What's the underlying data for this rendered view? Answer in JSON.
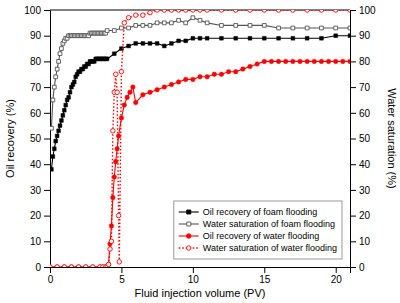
{
  "chart_data": {
    "type": "line",
    "xlabel": "Fluid injection volume (PV)",
    "ylabel": "Oil recovery (%)",
    "y2label": "Water saturation (%)",
    "xlim": [
      0,
      21
    ],
    "xticks": [
      0,
      5,
      10,
      15,
      20
    ],
    "ylim": [
      0,
      100
    ],
    "yticks": [
      0,
      10,
      20,
      30,
      40,
      50,
      60,
      70,
      80,
      90,
      100
    ],
    "y2lim": [
      0,
      100
    ],
    "y2ticks": [
      0,
      10,
      20,
      30,
      40,
      50,
      60,
      70,
      80,
      90,
      100
    ],
    "grid": false,
    "legend": "lower right",
    "series": [
      {
        "name": "Oil recovery of foam flooding",
        "color": "#000000",
        "marker": "square",
        "line_style": "solid",
        "axis": "y",
        "x": [
          0.1,
          0.2,
          0.3,
          0.4,
          0.5,
          0.6,
          0.7,
          0.8,
          0.9,
          1.0,
          1.1,
          1.2,
          1.3,
          1.4,
          1.5,
          1.6,
          1.7,
          1.8,
          1.9,
          2.0,
          2.1,
          2.2,
          2.3,
          2.4,
          2.5,
          2.6,
          2.7,
          2.8,
          2.9,
          3.0,
          3.1,
          3.2,
          3.3,
          3.4,
          3.5,
          3.6,
          3.7,
          3.8,
          3.9,
          4.0,
          4.5,
          5.0,
          5.5,
          6.0,
          6.5,
          7.0,
          7.5,
          8.0,
          8.5,
          9.0,
          9.5,
          10.0,
          10.5,
          11.0,
          12.0,
          13.0,
          14.0,
          15.0,
          16.0,
          17.0,
          18.0,
          19.0,
          20.0,
          21.0
        ],
        "values": [
          38,
          43,
          46,
          49,
          51,
          53,
          55,
          57,
          59,
          61,
          63,
          65,
          66,
          68,
          70,
          71,
          72,
          74,
          75,
          76,
          76,
          77,
          77,
          78,
          78,
          79,
          79,
          80,
          80,
          80,
          80,
          81,
          81,
          81,
          81,
          81,
          81,
          81,
          81,
          81,
          83,
          85,
          86,
          87,
          87,
          87,
          87,
          86,
          87,
          88,
          88,
          89,
          89,
          89,
          89,
          89,
          89,
          89,
          89,
          89,
          89,
          89,
          90,
          90
        ]
      },
      {
        "name": "Water saturation of foam flooding",
        "color": "#555555",
        "marker": "open-square",
        "line_style": "solid",
        "axis": "y2",
        "x": [
          0.1,
          0.2,
          0.3,
          0.4,
          0.5,
          0.6,
          0.7,
          0.8,
          0.9,
          1.0,
          1.1,
          1.2,
          1.3,
          1.4,
          1.5,
          1.6,
          1.7,
          1.8,
          1.9,
          2.0,
          2.1,
          2.2,
          2.3,
          2.4,
          2.5,
          2.6,
          2.7,
          2.8,
          2.9,
          3.0,
          3.1,
          3.2,
          3.3,
          3.4,
          3.5,
          3.6,
          3.7,
          3.8,
          3.9,
          4.0,
          4.5,
          5.0,
          5.5,
          6.0,
          6.5,
          7.0,
          7.5,
          8.0,
          8.5,
          9.0,
          9.5,
          10.0,
          10.5,
          11.0,
          12.0,
          13.0,
          14.0,
          15.0,
          16.0,
          17.0,
          18.0,
          19.0,
          20.0,
          21.0
        ],
        "values": [
          54,
          65,
          70,
          74,
          77,
          80,
          83,
          85,
          87,
          88,
          89,
          89,
          90,
          90,
          90,
          90,
          90,
          90,
          90,
          90,
          90,
          90,
          90,
          90,
          90,
          90,
          90,
          91,
          91,
          91,
          91,
          91,
          91,
          91,
          91,
          91,
          91,
          91,
          91,
          92,
          92,
          93,
          93,
          94,
          94,
          94,
          95,
          95,
          95,
          96,
          95,
          97,
          96,
          95,
          94,
          94,
          94,
          94,
          93,
          93,
          93,
          93,
          93,
          93
        ]
      },
      {
        "name": "Oil recovery of water flooding",
        "color": "#ff0000",
        "marker": "circle",
        "line_style": "solid",
        "axis": "y",
        "x": [
          0.0,
          0.5,
          1.0,
          1.5,
          2.0,
          2.5,
          3.0,
          3.5,
          3.7,
          3.9,
          4.0,
          4.1,
          4.2,
          4.3,
          4.4,
          4.5,
          4.6,
          4.7,
          4.8,
          5.0,
          5.2,
          5.4,
          5.6,
          5.8,
          6.0,
          6.5,
          7.0,
          7.5,
          8.0,
          8.5,
          9.0,
          9.5,
          10.0,
          10.5,
          11.0,
          11.5,
          12.0,
          12.5,
          13.0,
          13.5,
          14.0,
          14.5,
          15.0,
          15.5,
          16.0,
          16.5,
          17.0,
          17.5,
          18.0,
          18.5,
          19.0,
          19.5,
          20.0,
          20.5,
          21.0
        ],
        "values": [
          0,
          0,
          0,
          0,
          0,
          0,
          0,
          0,
          0,
          0,
          0,
          1,
          9,
          16,
          27,
          35,
          41,
          46,
          51,
          58,
          63,
          66,
          68,
          70,
          64,
          67,
          68,
          69,
          70,
          71,
          72,
          73,
          73,
          74,
          74,
          75,
          75,
          76,
          76,
          77,
          78,
          79,
          80,
          80,
          80,
          80,
          80,
          80,
          80,
          80,
          80,
          80,
          80,
          80,
          80
        ]
      },
      {
        "name": "Water saturation of water flooding",
        "color": "#ff0000",
        "marker": "open-circle",
        "line_style": "dotted",
        "axis": "y2",
        "x": [
          0.0,
          0.5,
          1.0,
          1.5,
          2.0,
          2.5,
          3.0,
          3.5,
          3.7,
          3.9,
          4.0,
          4.1,
          4.2,
          4.3,
          4.4,
          4.5,
          4.6,
          4.7,
          4.8,
          4.85,
          5.0,
          5.2,
          5.5,
          6.0,
          6.5,
          7.0,
          7.5,
          8.0,
          8.5,
          9.0,
          9.5,
          10.0,
          10.5,
          11.0,
          12.0,
          13.0,
          14.0,
          15.0,
          16.0,
          17.0,
          18.0,
          19.0,
          20.0,
          21.0
        ],
        "values": [
          0,
          0,
          0,
          0,
          0,
          0,
          0,
          0,
          0,
          0,
          0,
          1,
          7,
          10,
          53,
          68,
          75,
          68,
          20,
          2,
          76,
          95,
          97,
          98,
          98,
          99,
          100,
          100,
          100,
          100,
          100,
          100,
          100,
          100,
          100,
          100,
          100,
          100,
          100,
          100,
          100,
          100,
          100,
          100
        ]
      }
    ]
  }
}
